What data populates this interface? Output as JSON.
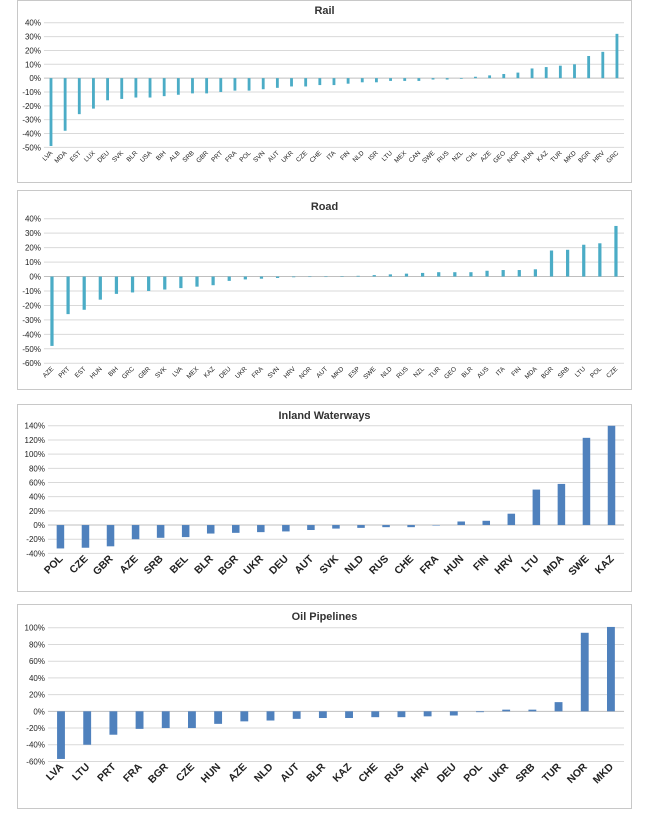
{
  "colors": {
    "rail": "#4bacc6",
    "road": "#4bacc6",
    "waterways": "#4f81bd",
    "pipelines": "#4f81bd"
  },
  "chart_data": [
    {
      "type": "bar",
      "title": "Rail",
      "ylim": [
        -50,
        40
      ],
      "yticks": [
        -50,
        -40,
        -30,
        -20,
        -10,
        0,
        10,
        20,
        30,
        40
      ],
      "categories": [
        "LVA",
        "MDA",
        "EST",
        "LUX",
        "DEU",
        "SVK",
        "BLR",
        "USA",
        "BIH",
        "ALB",
        "SRB",
        "GBR",
        "PRT",
        "FRA",
        "POL",
        "SVN",
        "AUT",
        "UKR",
        "CZE",
        "CHE",
        "ITA",
        "FIN",
        "NLD",
        "ISR",
        "LTU",
        "MEX",
        "CAN",
        "SWE",
        "RUS",
        "NZL",
        "CHL",
        "AZE",
        "GEO",
        "NOR",
        "HUN",
        "KAZ",
        "TUR",
        "MKD",
        "BGR",
        "HRV",
        "GRC"
      ],
      "values": [
        -49,
        -38,
        -26,
        -22,
        -16,
        -15,
        -14,
        -14,
        -13,
        -12,
        -11,
        -11,
        -10,
        -9,
        -9,
        -8,
        -7,
        -6,
        -6,
        -5,
        -5,
        -4,
        -3,
        -3,
        -2,
        -2,
        -2,
        -1,
        -1,
        -0.5,
        1,
        2,
        3,
        4,
        7,
        8,
        9,
        10,
        16,
        19,
        32
      ],
      "grid": true,
      "bar_width": 0.2
    },
    {
      "type": "bar",
      "title": "Road",
      "ylim": [
        -60,
        40
      ],
      "yticks": [
        -60,
        -50,
        -40,
        -30,
        -20,
        -10,
        0,
        10,
        20,
        30,
        40
      ],
      "categories": [
        "AZE",
        "PRT",
        "EST",
        "HUN",
        "BIH",
        "GRC",
        "GBR",
        "SVK",
        "LVA",
        "MEX",
        "KAZ",
        "DEU",
        "UKR",
        "FRA",
        "SVN",
        "HRV",
        "NOR",
        "AUT",
        "MKD",
        "ESP",
        "SWE",
        "NLD",
        "RUS",
        "NZL",
        "TUR",
        "GEO",
        "BLR",
        "AUS",
        "ITA",
        "FIN",
        "MDA",
        "BGR",
        "SRB",
        "LTU",
        "POL",
        "CZE"
      ],
      "values": [
        -48,
        -26,
        -23,
        -16,
        -12,
        -11,
        -10,
        -9,
        -8,
        -7,
        -6,
        -3,
        -2,
        -1.5,
        -1,
        -0.5,
        0,
        0,
        0.3,
        0.5,
        1,
        1.5,
        2,
        2.5,
        3,
        3,
        3,
        4,
        4.5,
        4.5,
        5,
        18,
        18.5,
        22,
        23,
        35
      ],
      "grid": true,
      "bar_width": 0.2
    },
    {
      "type": "bar",
      "title": "Inland Waterways",
      "ylim": [
        -40,
        140
      ],
      "yticks": [
        -40,
        -20,
        0,
        20,
        40,
        60,
        80,
        100,
        120,
        140
      ],
      "categories": [
        "POL",
        "CZE",
        "GBR",
        "AZE",
        "SRB",
        "BEL",
        "BLR",
        "BGR",
        "UKR",
        "DEU",
        "AUT",
        "SVK",
        "NLD",
        "RUS",
        "CHE",
        "FRA",
        "HUN",
        "FIN",
        "HRV",
        "LTU",
        "MDA",
        "SWE",
        "KAZ"
      ],
      "values": [
        -33,
        -32,
        -30,
        -20,
        -18,
        -17,
        -12,
        -11,
        -10,
        -9,
        -7,
        -5,
        -4,
        -3,
        -3,
        0,
        5,
        6,
        16,
        50,
        58,
        123,
        140
      ],
      "grid": true,
      "bar_width": 0.3
    },
    {
      "type": "bar",
      "title": "Oil Pipelines",
      "ylim": [
        -60,
        100
      ],
      "yticks": [
        -60,
        -40,
        -20,
        0,
        20,
        40,
        60,
        80,
        100
      ],
      "categories": [
        "LVA",
        "LTU",
        "PRT",
        "FRA",
        "BGR",
        "CZE",
        "HUN",
        "AZE",
        "NLD",
        "AUT",
        "BLR",
        "KAZ",
        "CHE",
        "RUS",
        "HRV",
        "DEU",
        "POL",
        "UKR",
        "SRB",
        "TUR",
        "NOR",
        "MKD"
      ],
      "values": [
        -57,
        -40,
        -28,
        -21,
        -20,
        -20,
        -15,
        -12,
        -11,
        -9,
        -8,
        -8,
        -7,
        -7,
        -6,
        -5,
        -1,
        2,
        2,
        11,
        94,
        101
      ],
      "grid": true,
      "bar_width": 0.3
    }
  ]
}
